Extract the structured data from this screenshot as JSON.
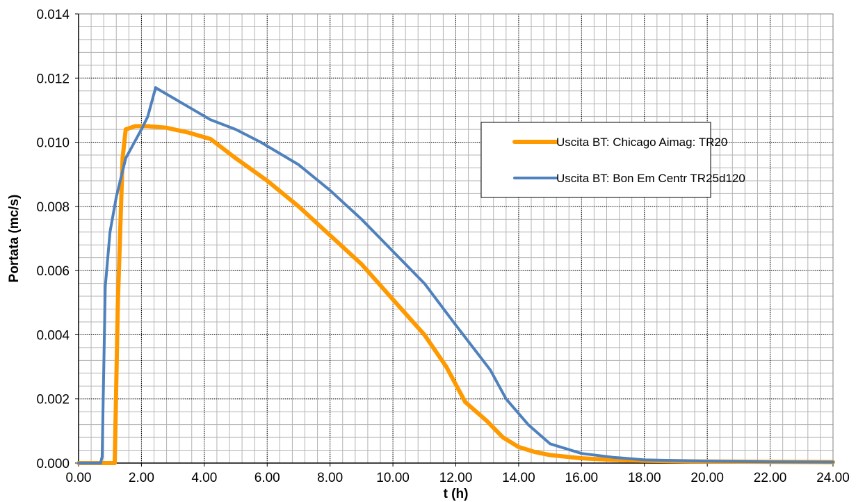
{
  "chart_data": {
    "type": "line",
    "title": "",
    "xlabel": "t (h)",
    "ylabel": "Portata (mc/s)",
    "xlim": [
      0,
      24
    ],
    "ylim": [
      0,
      0.014
    ],
    "x_major_step": 2,
    "y_major_step": 0.002,
    "x_minor_step": 0.4,
    "y_minor_step": 0.0004,
    "x_tick_labels": [
      "0.00",
      "2.00",
      "4.00",
      "6.00",
      "8.00",
      "10.00",
      "12.00",
      "14.00",
      "16.00",
      "18.00",
      "20.00",
      "22.00",
      "24.00"
    ],
    "y_tick_labels": [
      "0.000",
      "0.002",
      "0.004",
      "0.006",
      "0.008",
      "0.010",
      "0.012",
      "0.014"
    ],
    "grid": "major dotted, minor solid",
    "legend_position": "right",
    "series": [
      {
        "name": "Uscita BT: Chicago Aimag: TR20",
        "color": "#FF9900",
        "x": [
          0,
          1.15,
          1.25,
          1.4,
          1.5,
          1.8,
          2.2,
          2.8,
          3.5,
          4.2,
          5.0,
          6.0,
          7.0,
          8.0,
          9.0,
          10.0,
          11.0,
          11.7,
          12.3,
          13.0,
          13.5,
          14.0,
          14.5,
          15.0,
          16.0,
          17.0,
          18.0,
          20.0,
          22.0,
          24.0
        ],
        "y": [
          0,
          0,
          0.005,
          0.0095,
          0.0104,
          0.0105,
          0.0105,
          0.01045,
          0.0103,
          0.0101,
          0.0095,
          0.0088,
          0.008,
          0.0071,
          0.0062,
          0.0051,
          0.004,
          0.003,
          0.0019,
          0.0013,
          0.0008,
          0.0005,
          0.00035,
          0.00025,
          0.00015,
          0.0001,
          7e-05,
          5e-05,
          4e-05,
          3e-05
        ]
      },
      {
        "name": "Uscita BT: Bon Em Centr TR25d120",
        "color": "#4F81BD",
        "x": [
          0,
          0.7,
          0.75,
          0.85,
          1.0,
          1.2,
          1.5,
          2.0,
          2.2,
          2.45,
          2.8,
          3.5,
          4.2,
          5.0,
          5.8,
          7.0,
          8.0,
          9.0,
          10.0,
          11.0,
          12.0,
          13.1,
          13.6,
          14.3,
          15.0,
          16.0,
          17.0,
          18.0,
          20.0,
          22.0,
          24.0
        ],
        "y": [
          0,
          0,
          0.0002,
          0.0055,
          0.0072,
          0.0083,
          0.0095,
          0.0104,
          0.0108,
          0.0117,
          0.0115,
          0.0111,
          0.0107,
          0.0104,
          0.01,
          0.0093,
          0.0085,
          0.0076,
          0.0066,
          0.0056,
          0.0043,
          0.0029,
          0.002,
          0.0012,
          0.0006,
          0.0003,
          0.00018,
          0.0001,
          6e-05,
          4e-05,
          3e-05
        ]
      }
    ]
  }
}
